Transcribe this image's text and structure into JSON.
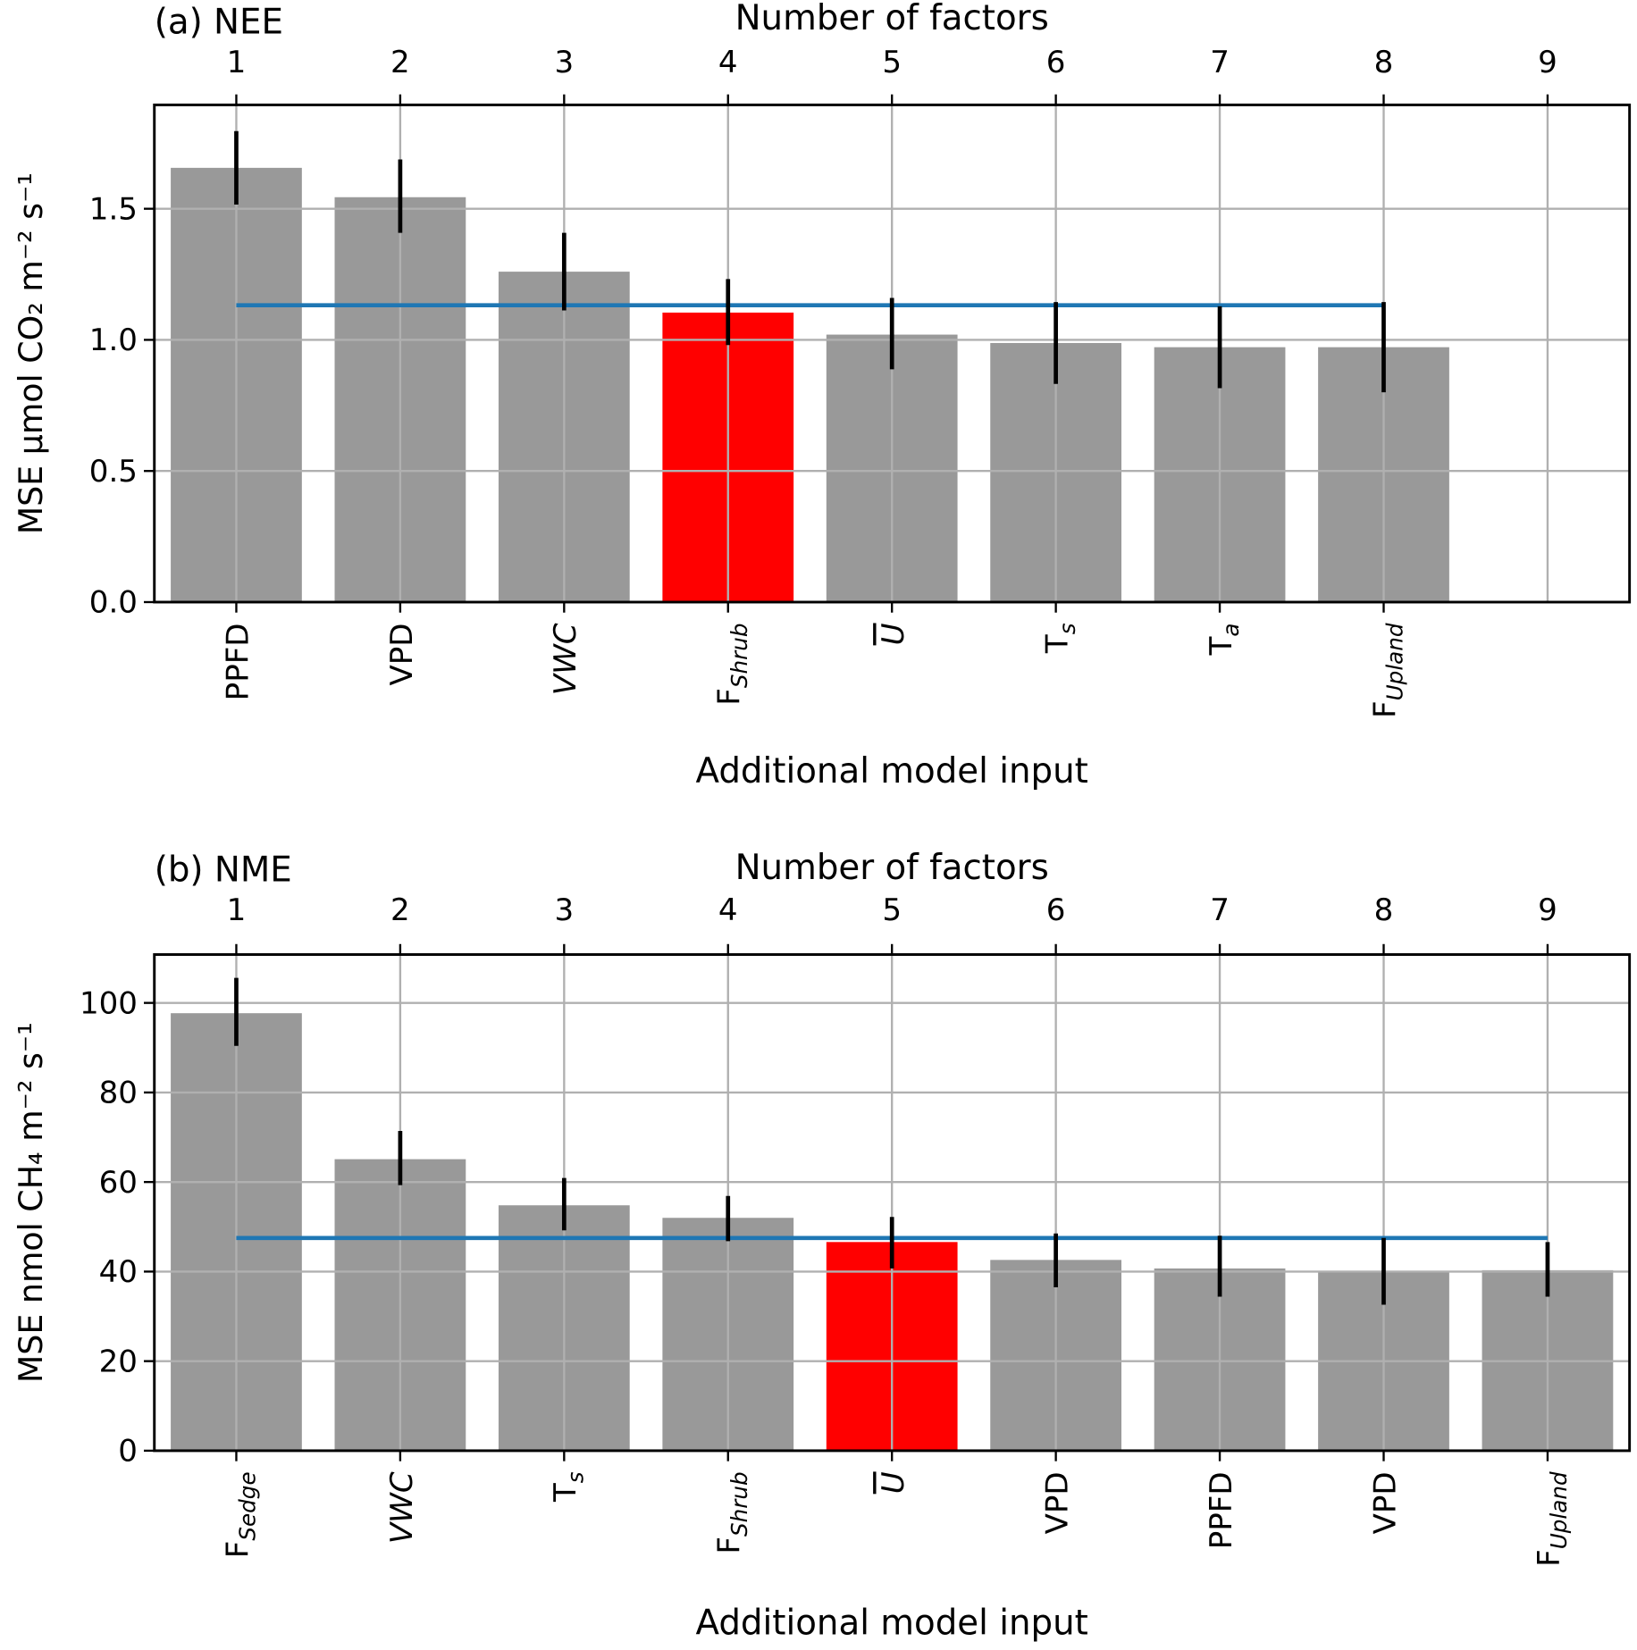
{
  "chart_data": [
    {
      "type": "bar",
      "panel_title": "(a) NEE",
      "top_xlabel": "Number of factors",
      "top_ticks": [
        "1",
        "2",
        "3",
        "4",
        "5",
        "6",
        "7",
        "8",
        "9"
      ],
      "xlabel": "Additional model input",
      "ylabel": "MSE μmol CO₂ m⁻² s⁻¹",
      "ylim": [
        0,
        1.896
      ],
      "xlim": [
        0.5,
        9.5
      ],
      "yticks": [
        0.0,
        0.5,
        1.0,
        1.5
      ],
      "ytick_labels": [
        "0.0",
        "0.5",
        "1.0",
        "1.5"
      ],
      "grid": true,
      "categories": [
        {
          "main": "PPFD",
          "sub": "",
          "italic": false,
          "overline": false
        },
        {
          "main": "VPD",
          "sub": "",
          "italic": false,
          "overline": false
        },
        {
          "main": "VWC",
          "sub": "",
          "italic": true,
          "overline": false
        },
        {
          "main": "F",
          "sub": "Shrub",
          "italic": false,
          "overline": false
        },
        {
          "main": "U",
          "sub": "",
          "italic": true,
          "overline": true
        },
        {
          "main": "T",
          "sub": "s",
          "italic": false,
          "overline": false
        },
        {
          "main": "T",
          "sub": "a",
          "italic": false,
          "overline": false
        },
        {
          "main": "F",
          "sub": "Upland",
          "italic": false,
          "overline": false
        }
      ],
      "values": [
        1.656,
        1.544,
        1.26,
        1.104,
        1.02,
        0.988,
        0.972,
        0.972
      ],
      "err_low": [
        1.516,
        1.408,
        1.112,
        0.98,
        0.888,
        0.832,
        0.816,
        0.8
      ],
      "err_high": [
        1.796,
        1.688,
        1.408,
        1.232,
        1.16,
        1.144,
        1.128,
        1.144
      ],
      "highlight_index": 3,
      "reference_line": {
        "value": 1.132,
        "from": 1,
        "to": 8
      },
      "colors": {
        "bar": "#999999",
        "highlight": "#ff0000",
        "line": "#1f77b4",
        "grid": "#b0b0b0",
        "error": "#000000"
      }
    },
    {
      "type": "bar",
      "panel_title": "(b) NME",
      "top_xlabel": "Number of factors",
      "top_ticks": [
        "1",
        "2",
        "3",
        "4",
        "5",
        "6",
        "7",
        "8",
        "9"
      ],
      "xlabel": "Additional model input",
      "ylabel": "MSE nmol CH₄ m⁻² s⁻¹",
      "ylim": [
        0,
        110.8
      ],
      "xlim": [
        0.5,
        9.5
      ],
      "yticks": [
        0,
        20,
        40,
        60,
        80,
        100
      ],
      "ytick_labels": [
        "0",
        "20",
        "40",
        "60",
        "80",
        "100"
      ],
      "grid": true,
      "categories": [
        {
          "main": "F",
          "sub": "Sedge",
          "italic": false,
          "overline": false
        },
        {
          "main": "VWC",
          "sub": "",
          "italic": true,
          "overline": false
        },
        {
          "main": "T",
          "sub": "s",
          "italic": false,
          "overline": false
        },
        {
          "main": "F",
          "sub": "Shrub",
          "italic": false,
          "overline": false
        },
        {
          "main": "U",
          "sub": "",
          "italic": true,
          "overline": true
        },
        {
          "main": "VPD",
          "sub": "",
          "italic": false,
          "overline": false
        },
        {
          "main": "PPFD",
          "sub": "",
          "italic": false,
          "overline": false
        },
        {
          "main": "VPD",
          "sub": "",
          "italic": false,
          "overline": false
        },
        {
          "main": "F",
          "sub": "Upland",
          "italic": false,
          "overline": false
        }
      ],
      "values": [
        97.7,
        65.1,
        54.8,
        52.0,
        46.6,
        42.6,
        40.7,
        39.8,
        40.3
      ],
      "err_low": [
        90.4,
        59.3,
        49.2,
        46.8,
        40.7,
        36.5,
        34.4,
        32.6,
        34.4
      ],
      "err_high": [
        105.6,
        71.4,
        60.9,
        56.9,
        52.2,
        48.5,
        48.0,
        47.5,
        46.6
      ],
      "highlight_index": 4,
      "reference_line": {
        "value": 47.5,
        "from": 1,
        "to": 9
      },
      "colors": {
        "bar": "#999999",
        "highlight": "#ff0000",
        "line": "#1f77b4",
        "grid": "#b0b0b0",
        "error": "#000000"
      }
    }
  ]
}
